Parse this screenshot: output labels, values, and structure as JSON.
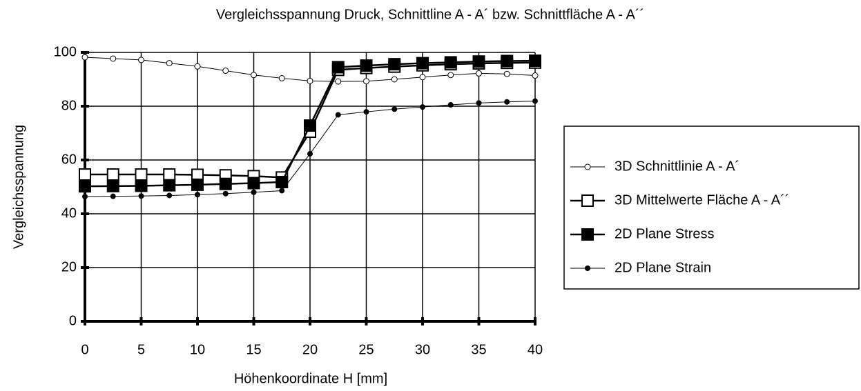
{
  "chart_data": {
    "type": "line",
    "title": "Vergleichsspannung Druck, Schnittline A - A´ bzw. Schnittfläche A - A´´",
    "x_label": "Höhenkoordinate H [mm]",
    "y_label": "Vergleichsspannung",
    "x": [
      0,
      2.5,
      5,
      7.5,
      10,
      12.5,
      15,
      17.5,
      20,
      22.5,
      25,
      27.5,
      30,
      32.5,
      35,
      37.5,
      40
    ],
    "series": [
      {
        "name": "3D Schnittlinie A - A´",
        "color": "#000000",
        "marker": "open-circle",
        "values": [
          98.2,
          97.7,
          97.2,
          96,
          94.8,
          93.2,
          91.6,
          90.4,
          89.4,
          89.2,
          89.3,
          90,
          90.8,
          91.6,
          92.2,
          92,
          91.4
        ]
      },
      {
        "name": "3D Mittelwerte Fläche A - A´´",
        "color": "#000000",
        "marker": "open-square",
        "values": [
          54.6,
          54.6,
          54.6,
          54.6,
          54.5,
          54.3,
          54,
          53.5,
          70.5,
          93.5,
          94.2,
          94.7,
          95.2,
          95.6,
          95.9,
          96.1,
          96.2
        ]
      },
      {
        "name": "2D Plane Stress",
        "color": "#000000",
        "marker": "filled-square",
        "values": [
          50.2,
          50.3,
          50.4,
          50.6,
          50.8,
          51.1,
          51.4,
          51.8,
          72.8,
          94.5,
          95.1,
          95.6,
          96,
          96.3,
          96.6,
          96.8,
          96.9
        ]
      },
      {
        "name": "2D Plane Strain",
        "color": "#000000",
        "marker": "filled-circle",
        "values": [
          46.4,
          46.5,
          46.6,
          46.8,
          47.1,
          47.5,
          48,
          48.6,
          62.3,
          76.8,
          77.9,
          78.9,
          79.7,
          80.5,
          81.2,
          81.6,
          81.9
        ]
      }
    ],
    "xlim": [
      0,
      40
    ],
    "xticks": [
      0,
      5,
      10,
      15,
      20,
      25,
      30,
      35,
      40
    ],
    "ylim": [
      0,
      100
    ],
    "yticks": [
      0,
      20,
      40,
      60,
      80,
      100
    ],
    "grid": true,
    "legend": "right"
  }
}
